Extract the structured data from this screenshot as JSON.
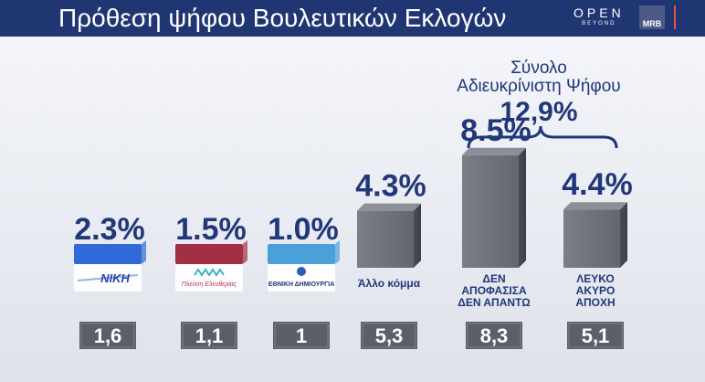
{
  "header": {
    "title": "Πρόθεση ψήφου Βουλευτικών Εκλογών",
    "brand_main": "OPEN",
    "brand_sub": "BEYOND",
    "pollster": "MRB"
  },
  "summary": {
    "line1": "Σύνολο",
    "line2": "Αδιευκρίνιστη Ψήφου",
    "value": "12,9%"
  },
  "colors": {
    "header_bg": "#1f3672",
    "text_blue": "#21377a",
    "bar_grey": "#6d7079",
    "box_grey": "#5c5f67",
    "niki": "#2f6ad6",
    "plefsi": "#a32f45",
    "edim": "#4ca0d8"
  },
  "chart_data": {
    "type": "bar",
    "categories": [
      "ΝΙΚΗ",
      "Πλεύση Ελευθερίας",
      "ΕΘΝΙΚΗ ΔΗΜΙΟΥΡΓΙΑ",
      "Άλλο κόμμα",
      "ΔΕΝ ΑΠΟΦΑΣΙΣΑ ΔΕΝ ΑΠΑΝΤΩ",
      "ΛΕΥΚΟ ΑΚΥΡΟ ΑΠΟΧΗ"
    ],
    "values": [
      2.3,
      1.5,
      1.0,
      4.3,
      8.5,
      4.4
    ],
    "value_labels": [
      "2.3%",
      "1.5%",
      "1.0%",
      "4.3%",
      "8.5%",
      "4.4%"
    ],
    "previous_values": [
      "1,6",
      "1,1",
      "1",
      "5,3",
      "8,3",
      "5,1"
    ],
    "bars": [
      {
        "label": "ΝΙΚΗ",
        "kind": "logo",
        "logo": "niki",
        "value": 2.3,
        "pct": "2.3%",
        "prev": "1,6"
      },
      {
        "label": "Πλεύση Ελευθερίας",
        "kind": "logo",
        "logo": "plefsi",
        "value": 1.5,
        "pct": "1.5%",
        "prev": "1,1"
      },
      {
        "label": "ΕΘΝΙΚΗ ΔΗΜΙΟΥΡΓΙΑ",
        "kind": "logo",
        "logo": "edim",
        "value": 1.0,
        "pct": "1.0%",
        "prev": "1"
      },
      {
        "label": "Άλλο κόμμα",
        "kind": "bar",
        "lines": [
          "Άλλο κόμμα"
        ],
        "value": 4.3,
        "pct": "4.3%",
        "prev": "5,3"
      },
      {
        "label": "ΔΕΝ ΑΠΟΦΑΣΙΣΑ ΔΕΝ ΑΠΑΝΤΩ",
        "kind": "bar",
        "lines": [
          "ΔΕΝ",
          "ΑΠΟΦΑΣΙΣΑ",
          "ΔΕΝ ΑΠΑΝΤΩ"
        ],
        "value": 8.5,
        "pct": "8.5%",
        "prev": "8,3"
      },
      {
        "label": "ΛΕΥΚΟ ΑΚΥΡΟ ΑΠΟΧΗ",
        "kind": "bar",
        "lines": [
          "ΛΕΥΚΟ",
          "ΑΚΥΡΟ",
          "ΑΠΟΧΗ"
        ],
        "value": 4.4,
        "pct": "4.4%",
        "prev": "5,1"
      }
    ],
    "title": "Πρόθεση ψήφου Βουλευτικών Εκλογών",
    "xlabel": "",
    "ylabel": "",
    "ylim": [
      0,
      10
    ]
  }
}
